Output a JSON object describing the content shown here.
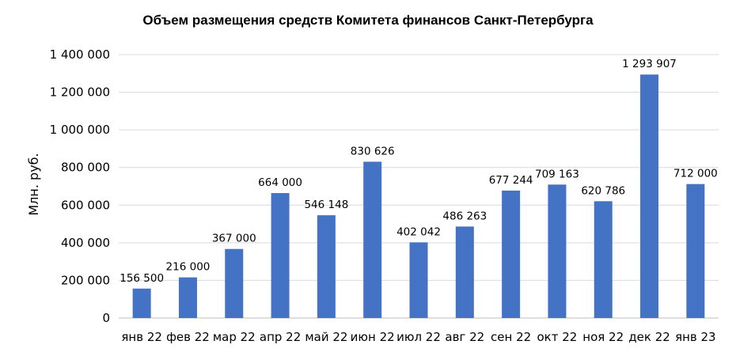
{
  "chart_data": {
    "type": "bar",
    "title": "Объем размещения  средств Комитета финансов Санкт-Петербурга",
    "xlabel": "",
    "ylabel": "Млн. руб.",
    "ylim": [
      0,
      1400000
    ],
    "yticks": [
      "0",
      "200 000",
      "400 000",
      "600 000",
      "800 000",
      "1 000 000",
      "1 200 000",
      "1 400 000"
    ],
    "grid": true,
    "legend": "none",
    "color": "#4472C4",
    "categories": [
      "янв 22",
      "фев 22",
      "мар 22",
      "апр 22",
      "май 22",
      "июн 22",
      "июл 22",
      "авг 22",
      "сен 22",
      "окт 22",
      "ноя 22",
      "дек 22",
      "янв 23"
    ],
    "values": [
      156500,
      216000,
      367000,
      664000,
      546148,
      830626,
      402042,
      486263,
      677244,
      709163,
      620786,
      1293907,
      712000
    ],
    "data_labels": [
      "156 500",
      "216 000",
      "367 000",
      "664 000",
      "546 148",
      "830 626",
      "402 042",
      "486 263",
      "677 244",
      "709 163",
      "620 786",
      "1 293 907",
      "712 000"
    ]
  }
}
